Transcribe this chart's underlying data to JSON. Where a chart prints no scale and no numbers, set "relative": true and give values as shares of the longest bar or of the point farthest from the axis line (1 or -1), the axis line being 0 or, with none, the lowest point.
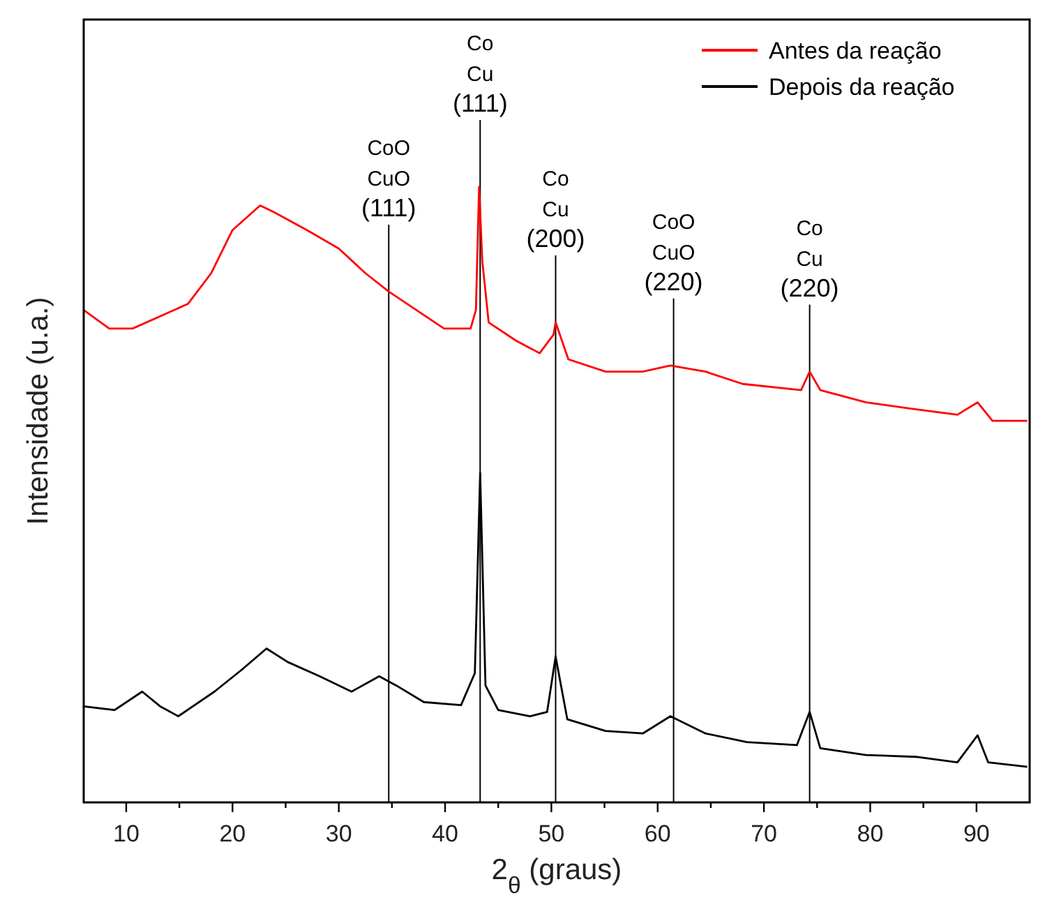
{
  "chart_data": {
    "type": "line",
    "xlabel": "2$_{θ}$ (graus)",
    "ylabel": "Intensidade (u.a.)",
    "relative": true,
    "legend": "top right",
    "grid": false,
    "marker": "none",
    "line_style": "solid",
    "tick_labels": "x",
    "xlim": [
      6,
      95
    ],
    "xticks": [
      10,
      {
        "value": 15,
        "label": null
      },
      20,
      {
        "value": 25,
        "label": null
      },
      30,
      {
        "value": 35,
        "label": null
      },
      40,
      {
        "value": 45,
        "label": null
      },
      50,
      {
        "value": 55,
        "label": null
      },
      60,
      {
        "value": 65,
        "label": null
      },
      70,
      {
        "value": 75,
        "label": null
      },
      80,
      {
        "value": 85,
        "label": null
      },
      90
    ],
    "series": [
      {
        "name": "Antes da reação",
        "color": "#ff0000",
        "x": [
          6.0,
          8.4,
          10.6,
          13.2,
          15.8,
          18.0,
          20.0,
          22.6,
          23.8,
          27.0,
          30.0,
          32.5,
          34.7,
          37.3,
          39.9,
          42.4,
          42.9,
          43.2,
          43.5,
          44.1,
          46.7,
          48.9,
          50.2,
          50.4,
          51.6,
          55.1,
          58.6,
          61.2,
          64.5,
          68.0,
          73.5,
          74.3,
          75.3,
          79.6,
          83.8,
          88.2,
          90.1,
          91.5,
          94.7
        ],
        "values": [
          0.8,
          0.77,
          0.77,
          0.79,
          0.81,
          0.86,
          0.93,
          0.97,
          0.96,
          0.93,
          0.9,
          0.86,
          0.83,
          0.8,
          0.77,
          0.77,
          0.8,
          1.0,
          0.88,
          0.78,
          0.75,
          0.73,
          0.76,
          0.78,
          0.72,
          0.7,
          0.7,
          0.71,
          0.7,
          0.68,
          0.67,
          0.7,
          0.67,
          0.65,
          0.64,
          0.63,
          0.65,
          0.62,
          0.62
        ]
      },
      {
        "name": "Depois da reação",
        "color": "#000000",
        "x": [
          6.0,
          8.9,
          11.5,
          13.2,
          14.9,
          18.3,
          20.9,
          23.2,
          25.2,
          28.2,
          31.2,
          33.8,
          35.4,
          38.0,
          41.5,
          42.8,
          43.3,
          43.8,
          45.0,
          48.0,
          49.6,
          50.4,
          51.5,
          55.1,
          58.6,
          61.2,
          64.5,
          68.4,
          73.1,
          74.3,
          75.3,
          79.6,
          84.3,
          88.2,
          90.1,
          91.1,
          94.7
        ],
        "values": [
          0.156,
          0.15,
          0.18,
          0.156,
          0.14,
          0.18,
          0.216,
          0.25,
          0.228,
          0.205,
          0.18,
          0.205,
          0.19,
          0.163,
          0.158,
          0.21,
          0.535,
          0.19,
          0.15,
          0.14,
          0.147,
          0.237,
          0.135,
          0.116,
          0.112,
          0.14,
          0.112,
          0.098,
          0.093,
          0.147,
          0.088,
          0.077,
          0.074,
          0.065,
          0.109,
          0.065,
          0.058
        ]
      }
    ],
    "ref_lines": [
      {
        "axis": "x",
        "value": 34.7,
        "label": "CoO\nCuO\n(111)",
        "color": "#000000"
      },
      {
        "axis": "x",
        "value": 43.3,
        "label": "Co\nCu\n(111)",
        "color": "#000000"
      },
      {
        "axis": "x",
        "value": 50.4,
        "label": "Co\nCu\n(200)",
        "color": "#000000"
      },
      {
        "axis": "x",
        "value": 61.5,
        "label": "CoO\nCuO\n(220)",
        "color": "#000000"
      },
      {
        "axis": "x",
        "value": 74.3,
        "label": "Co\nCu\n(220)",
        "color": "#000000"
      }
    ]
  }
}
